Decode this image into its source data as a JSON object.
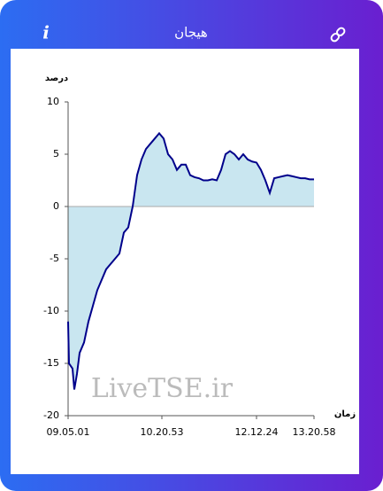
{
  "header": {
    "info": "i"
  },
  "watermark": "LiveTSE.ir",
  "chart_data": {
    "type": "area",
    "title": "هیجان",
    "y_label": "درصد",
    "x_label": "زمان",
    "x": [
      0,
      0.2,
      1,
      1.4,
      2,
      2.6,
      3.6,
      4.6,
      5.6,
      6.6,
      7.6,
      8.6,
      9.6,
      10.6,
      11.6,
      12.6,
      13.6,
      14.6,
      15.6,
      16.6,
      17.6,
      18.6,
      19.6,
      20.6,
      21.6,
      22.6,
      23.6,
      24.6,
      25.6,
      26.6,
      27.6,
      28.6,
      29.6,
      30.6,
      31.6,
      32.6,
      33.6,
      34.6,
      35.6,
      36.6,
      37.6,
      38.6,
      39.6,
      40.6,
      41.6,
      42.6,
      43.6,
      44.6,
      45.6,
      46.6,
      47.6,
      48.6,
      49.6,
      50.6,
      51.6,
      52.6,
      53.6,
      54.6,
      55.6
    ],
    "series": [
      {
        "color": "#00008b",
        "fill": "#c9e6f0",
        "values": [
          -11,
          -15,
          -15.5,
          -17.5,
          -16,
          -14,
          -13,
          -11,
          -9.5,
          -8,
          -7,
          -6,
          -5.5,
          -5,
          -4.5,
          -2.5,
          -2,
          0,
          3,
          4.5,
          5.5,
          6,
          6.5,
          7,
          6.5,
          5,
          4.5,
          3.5,
          4,
          4,
          3,
          2.8,
          2.7,
          2.5,
          2.5,
          2.6,
          2.5,
          3.5,
          5,
          5.3,
          5,
          4.5,
          5,
          4.5,
          4.3,
          4.2,
          3.5,
          2.5,
          1.3,
          2.7,
          2.8,
          2.9,
          3,
          2.9,
          2.8,
          2.7,
          2.7,
          2.6,
          2.6
        ]
      }
    ],
    "xlim": [
      0,
      55.6
    ],
    "xticks": [
      {
        "value": 0,
        "label": "09.05.01"
      },
      {
        "value": 21.2,
        "label": "10.20.53"
      },
      {
        "value": 42.6,
        "label": "12.12.24"
      },
      {
        "value": 55.6,
        "label": "13.20.58"
      }
    ],
    "ylim": [
      -20,
      10
    ],
    "yticks": [
      10,
      5,
      0,
      -5,
      -10,
      -15,
      -20
    ]
  }
}
